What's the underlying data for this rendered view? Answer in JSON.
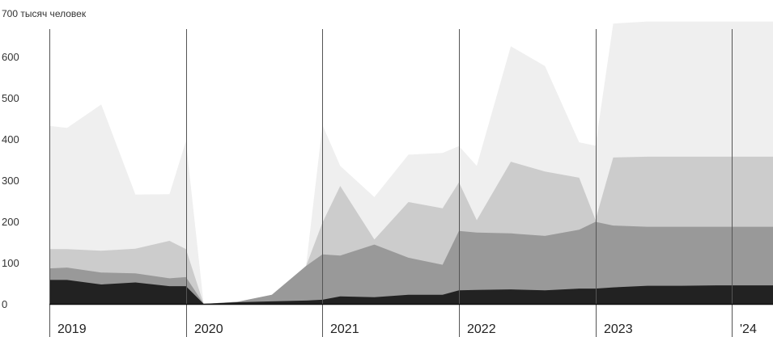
{
  "chart_data": {
    "type": "area",
    "stacked": true,
    "y_unit_label": "700 тысяч человек",
    "y_ticks": [
      0,
      100,
      200,
      300,
      400,
      500,
      600
    ],
    "ylim": [
      0,
      700
    ],
    "x_range": [
      2019.0,
      2024.3
    ],
    "year_labels": [
      {
        "label": "2019",
        "x": 2019.0
      },
      {
        "label": "2020",
        "x": 2020.0
      },
      {
        "label": "2021",
        "x": 2021.0
      },
      {
        "label": "2022",
        "x": 2022.0
      },
      {
        "label": "2023",
        "x": 2023.0
      },
      {
        "label": "'24",
        "x": 2024.0
      }
    ],
    "x": [
      2019.0,
      2019.13,
      2019.38,
      2019.63,
      2019.88,
      2020.0,
      2020.13,
      2020.38,
      2020.63,
      2020.88,
      2021.0,
      2021.13,
      2021.38,
      2021.63,
      2021.88,
      2022.0,
      2022.13,
      2022.38,
      2022.63,
      2022.88,
      2023.0,
      2023.13,
      2023.38,
      2023.63,
      2023.88,
      2024.0,
      2024.13,
      2024.3
    ],
    "cumulative_series": [
      {
        "fill": "#222222",
        "values": [
          58,
          58,
          47,
          52,
          43,
          43,
          0,
          4,
          6,
          8,
          10,
          18,
          16,
          22,
          22,
          33,
          34,
          35,
          33,
          37,
          37,
          40,
          44,
          44,
          45,
          45,
          45,
          45
        ]
      },
      {
        "fill": "#999999",
        "values": [
          86,
          88,
          76,
          74,
          62,
          65,
          0,
          5,
          22,
          92,
          120,
          117,
          144,
          112,
          95,
          177,
          173,
          171,
          165,
          180,
          199,
          190,
          187,
          187,
          187,
          187,
          187,
          187
        ]
      },
      {
        "fill": "#cccccc",
        "values": [
          133,
          133,
          129,
          134,
          153,
          133,
          0,
          5,
          22,
          92,
          197,
          286,
          156,
          247,
          232,
          295,
          203,
          345,
          321,
          306,
          204,
          355,
          357,
          357,
          357,
          357,
          357,
          357
        ]
      },
      {
        "fill": "#efefef",
        "values": [
          432,
          427,
          484,
          265,
          266,
          395,
          0,
          5,
          22,
          92,
          434,
          335,
          259,
          362,
          366,
          383,
          335,
          625,
          577,
          392,
          384,
          680,
          685,
          685,
          685,
          685,
          685,
          685
        ]
      }
    ]
  }
}
